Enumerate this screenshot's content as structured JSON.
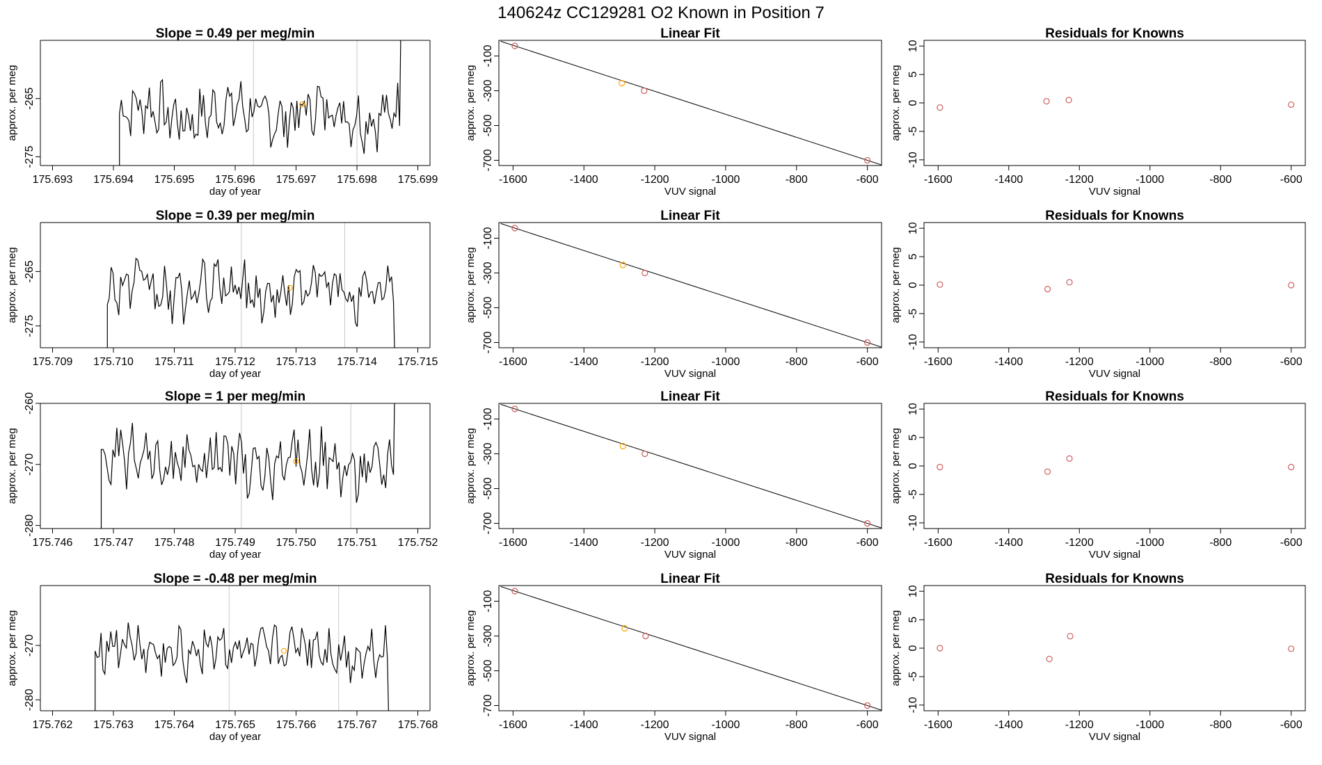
{
  "chart_data": [
    {
      "type": "line",
      "title": "140624z      CC129281    O2 Known in Position  7",
      "panels": [
        {
          "row": 1,
          "kind": "timeseries",
          "title": "Slope =  0.49  per meg/min",
          "xlabel": "day of year",
          "ylabel": "approx. per meg",
          "xlim": [
            175.6928,
            175.6992
          ],
          "ylim": [
            -276.5,
            -255
          ],
          "xticks": [
            "175.693",
            "175.694",
            "175.695",
            "175.696",
            "175.697",
            "175.698",
            "175.699"
          ],
          "yticks": [
            "-265",
            "-275"
          ],
          "vlines": [
            175.6963,
            175.698
          ],
          "start": 175.6941,
          "end": 175.6987,
          "base": -267.5,
          "amp": 5.5,
          "marker": {
            "x": 175.6971,
            "y": -266
          },
          "colors": {
            "line": "#000000",
            "vline": "#c8c8c8",
            "marker": "#ffa500"
          }
        },
        {
          "row": 1,
          "kind": "fit",
          "title": "Linear Fit",
          "xlabel": "VUV signal",
          "ylabel": "approx. per meg",
          "xlim": [
            -1640,
            -560
          ],
          "ylim": [
            -730,
            -10
          ],
          "xticks": [
            "-1600",
            "-1400",
            "-1200",
            "-1000",
            "-800",
            "-600"
          ],
          "yticks": [
            "-100",
            "-300",
            "-500",
            "-700"
          ],
          "points": [
            {
              "x": -1595,
              "y": -42,
              "color": "#cd5c5c"
            },
            {
              "x": -1293,
              "y": -256,
              "color": "#ffa500"
            },
            {
              "x": -1230,
              "y": -300,
              "color": "#cd5c5c"
            },
            {
              "x": -600,
              "y": -700,
              "color": "#cd5c5c"
            }
          ],
          "line": [
            [
              -1595,
              -42
            ],
            [
              -600,
              -700
            ]
          ]
        },
        {
          "row": 1,
          "kind": "residual",
          "title": "Residuals for Knowns",
          "xlabel": "VUV signal",
          "ylabel": "approx. per meg",
          "xlim": [
            -1640,
            -560
          ],
          "ylim": [
            -11,
            11
          ],
          "xticks": [
            "-1600",
            "-1400",
            "-1200",
            "-1000",
            "-800",
            "-600"
          ],
          "yticks": [
            "10",
            "5",
            "0",
            "-5",
            "-10"
          ],
          "points": [
            {
              "x": -1595,
              "y": -0.8,
              "color": "#cd5c5c"
            },
            {
              "x": -1293,
              "y": 0.3,
              "color": "#cd5c5c"
            },
            {
              "x": -1230,
              "y": 0.5,
              "color": "#cd5c5c"
            },
            {
              "x": -600,
              "y": -0.3,
              "color": "#cd5c5c"
            }
          ]
        },
        {
          "row": 2,
          "kind": "timeseries",
          "title": "Slope =  0.39  per meg/min",
          "xlabel": "day of year",
          "ylabel": "approx. per meg",
          "xlim": [
            175.7088,
            175.7152
          ],
          "ylim": [
            -279,
            -256
          ],
          "xticks": [
            "175.709",
            "175.710",
            "175.711",
            "175.712",
            "175.713",
            "175.714",
            "175.715"
          ],
          "yticks": [
            "-265",
            "-275"
          ],
          "vlines": [
            175.7121,
            175.7138
          ],
          "start": 175.7099,
          "end": 175.7146,
          "base": -268.5,
          "amp": 5.5,
          "marker": {
            "x": 175.7129,
            "y": -268
          },
          "colors": {
            "line": "#000000",
            "vline": "#c8c8c8",
            "marker": "#ffa500"
          }
        },
        {
          "row": 2,
          "kind": "fit",
          "title": "Linear Fit",
          "xlabel": "VUV signal",
          "ylabel": "approx. per meg",
          "xlim": [
            -1640,
            -560
          ],
          "ylim": [
            -730,
            -10
          ],
          "xticks": [
            "-1600",
            "-1400",
            "-1200",
            "-1000",
            "-800",
            "-600"
          ],
          "yticks": [
            "-100",
            "-300",
            "-500",
            "-700"
          ],
          "points": [
            {
              "x": -1595,
              "y": -42,
              "color": "#cd5c5c"
            },
            {
              "x": -1290,
              "y": -254,
              "color": "#ffa500"
            },
            {
              "x": -1228,
              "y": -300,
              "color": "#cd5c5c"
            },
            {
              "x": -600,
              "y": -700,
              "color": "#cd5c5c"
            }
          ],
          "line": [
            [
              -1595,
              -42
            ],
            [
              -600,
              -700
            ]
          ]
        },
        {
          "row": 2,
          "kind": "residual",
          "title": "Residuals for Knowns",
          "xlabel": "VUV signal",
          "ylabel": "approx. per meg",
          "xlim": [
            -1640,
            -560
          ],
          "ylim": [
            -11,
            11
          ],
          "xticks": [
            "-1600",
            "-1400",
            "-1200",
            "-1000",
            "-800",
            "-600"
          ],
          "yticks": [
            "10",
            "5",
            "0",
            "-5",
            "-10"
          ],
          "points": [
            {
              "x": -1595,
              "y": 0.1,
              "color": "#cd5c5c"
            },
            {
              "x": -1290,
              "y": -0.7,
              "color": "#cd5c5c"
            },
            {
              "x": -1228,
              "y": 0.5,
              "color": "#cd5c5c"
            },
            {
              "x": -600,
              "y": 0.0,
              "color": "#cd5c5c"
            }
          ]
        },
        {
          "row": 3,
          "kind": "timeseries",
          "title": "Slope =  1  per meg/min",
          "xlabel": "day of year",
          "ylabel": "approx. per meg",
          "xlim": [
            175.7458,
            175.7522
          ],
          "ylim": [
            -280.5,
            -260
          ],
          "xticks": [
            "175.746",
            "175.747",
            "175.748",
            "175.749",
            "175.750",
            "175.751",
            "175.752"
          ],
          "yticks": [
            "-260",
            "-270",
            "-280"
          ],
          "vlines": [
            175.7491,
            175.7509
          ],
          "start": 175.7468,
          "end": 175.7516,
          "base": -270,
          "amp": 5.5,
          "marker": {
            "x": 175.75,
            "y": -269.5
          },
          "colors": {
            "line": "#000000",
            "vline": "#c8c8c8",
            "marker": "#ffa500"
          }
        },
        {
          "row": 3,
          "kind": "fit",
          "title": "Linear Fit",
          "xlabel": "VUV signal",
          "ylabel": "approx. per meg",
          "xlim": [
            -1640,
            -560
          ],
          "ylim": [
            -730,
            -10
          ],
          "xticks": [
            "-1600",
            "-1400",
            "-1200",
            "-1000",
            "-800",
            "-600"
          ],
          "yticks": [
            "-100",
            "-300",
            "-500",
            "-700"
          ],
          "points": [
            {
              "x": -1595,
              "y": -42,
              "color": "#cd5c5c"
            },
            {
              "x": -1290,
              "y": -256,
              "color": "#ffa500"
            },
            {
              "x": -1228,
              "y": -300,
              "color": "#cd5c5c"
            },
            {
              "x": -600,
              "y": -700,
              "color": "#cd5c5c"
            }
          ],
          "line": [
            [
              -1595,
              -42
            ],
            [
              -600,
              -700
            ]
          ]
        },
        {
          "row": 3,
          "kind": "residual",
          "title": "Residuals for Knowns",
          "xlabel": "VUV signal",
          "ylabel": "approx. per meg",
          "xlim": [
            -1640,
            -560
          ],
          "ylim": [
            -11,
            11
          ],
          "xticks": [
            "-1600",
            "-1400",
            "-1200",
            "-1000",
            "-800",
            "-600"
          ],
          "yticks": [
            "10",
            "5",
            "0",
            "-5",
            "-10"
          ],
          "points": [
            {
              "x": -1595,
              "y": -0.2,
              "color": "#cd5c5c"
            },
            {
              "x": -1290,
              "y": -1.0,
              "color": "#cd5c5c"
            },
            {
              "x": -1228,
              "y": 1.3,
              "color": "#cd5c5c"
            },
            {
              "x": -600,
              "y": -0.2,
              "color": "#cd5c5c"
            }
          ]
        },
        {
          "row": 4,
          "kind": "timeseries",
          "title": "Slope =  -0.48  per meg/min",
          "xlabel": "day of year",
          "ylabel": "approx. per meg",
          "xlim": [
            175.7618,
            175.7682
          ],
          "ylim": [
            -282,
            -259
          ],
          "xticks": [
            "175.762",
            "175.763",
            "175.764",
            "175.765",
            "175.766",
            "175.767",
            "175.768"
          ],
          "yticks": [
            "-270",
            "-280"
          ],
          "vlines": [
            175.7649,
            175.7667
          ],
          "start": 175.7627,
          "end": 175.7675,
          "base": -271,
          "amp": 5.5,
          "marker": {
            "x": 175.7658,
            "y": -271
          },
          "colors": {
            "line": "#000000",
            "vline": "#c8c8c8",
            "marker": "#ffa500"
          }
        },
        {
          "row": 4,
          "kind": "fit",
          "title": "Linear Fit",
          "xlabel": "VUV signal",
          "ylabel": "approx. per meg",
          "xlim": [
            -1640,
            -560
          ],
          "ylim": [
            -730,
            -10
          ],
          "xticks": [
            "-1600",
            "-1400",
            "-1200",
            "-1000",
            "-800",
            "-600"
          ],
          "yticks": [
            "-100",
            "-300",
            "-500",
            "-700"
          ],
          "points": [
            {
              "x": -1595,
              "y": -42,
              "color": "#cd5c5c"
            },
            {
              "x": -1285,
              "y": -256,
              "color": "#ffa500"
            },
            {
              "x": -1226,
              "y": -300,
              "color": "#cd5c5c"
            },
            {
              "x": -600,
              "y": -700,
              "color": "#cd5c5c"
            }
          ],
          "line": [
            [
              -1595,
              -42
            ],
            [
              -600,
              -700
            ]
          ]
        },
        {
          "row": 4,
          "kind": "residual",
          "title": "Residuals for Knowns",
          "xlabel": "VUV signal",
          "ylabel": "approx. per meg",
          "xlim": [
            -1640,
            -560
          ],
          "ylim": [
            -11,
            11
          ],
          "xticks": [
            "-1600",
            "-1400",
            "-1200",
            "-1000",
            "-800",
            "-600"
          ],
          "yticks": [
            "10",
            "5",
            "0",
            "-5",
            "-10"
          ],
          "points": [
            {
              "x": -1595,
              "y": 0.0,
              "color": "#cd5c5c"
            },
            {
              "x": -1285,
              "y": -1.9,
              "color": "#cd5c5c"
            },
            {
              "x": -1226,
              "y": 2.1,
              "color": "#cd5c5c"
            },
            {
              "x": -600,
              "y": -0.1,
              "color": "#cd5c5c"
            }
          ]
        }
      ]
    }
  ]
}
